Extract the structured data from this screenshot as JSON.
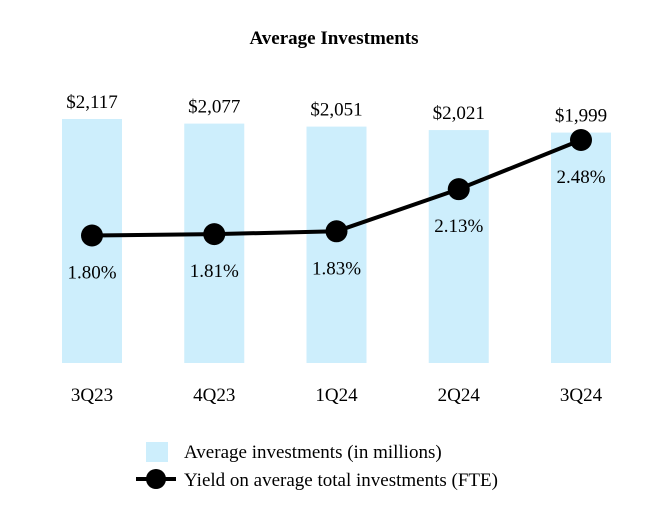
{
  "chart_data": {
    "type": "bar+line",
    "title": "Average Investments",
    "categories": [
      "3Q23",
      "4Q23",
      "1Q24",
      "2Q24",
      "3Q24"
    ],
    "series": [
      {
        "name": "Average investments (in millions)",
        "kind": "bar",
        "axis": "left",
        "values": [
          2117,
          2077,
          2051,
          2021,
          1999
        ],
        "labels": [
          "$2,117",
          "$2,077",
          "$2,051",
          "$2,021",
          "$1,999"
        ],
        "color": "#cdeefc"
      },
      {
        "name": "Yield on average total investments (FTE)",
        "kind": "line",
        "axis": "right",
        "values": [
          1.8,
          1.81,
          1.83,
          2.13,
          2.48
        ],
        "labels": [
          "1.80%",
          "1.81%",
          "1.83%",
          "2.13%",
          "2.48%"
        ],
        "color": "#000000"
      }
    ],
    "bar_axis_range": [
      0,
      2117
    ],
    "line_axis_range": [
      0.8,
      2.9
    ],
    "legend_position": "bottom-center",
    "grid": false
  }
}
